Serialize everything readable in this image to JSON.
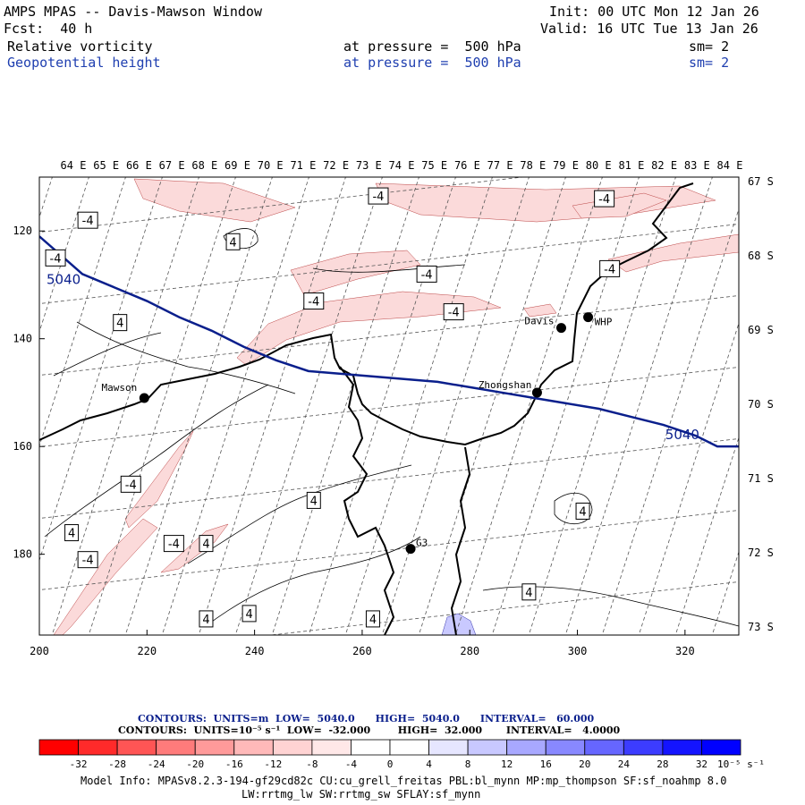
{
  "header": {
    "model": "AMPS MPAS -- Davis-Mawson Window",
    "init": "Init: 00 UTC Mon 12 Jan 26",
    "fcst": "Fcst:  40 h",
    "valid": "Valid: 16 UTC Tue 13 Jan 26",
    "field1": "Relative vorticity",
    "field1_level": "at pressure =  500 hPa",
    "field1_sm": "sm= 2",
    "field2": "Geopotential height",
    "field2_level": "at pressure =  500 hPa",
    "field2_sm": "sm= 2"
  },
  "chart_data": {
    "type": "map",
    "x_range": [
      200,
      330
    ],
    "y_range": [
      110,
      195
    ],
    "x_ticks": [
      "200",
      "220",
      "240",
      "260",
      "280",
      "300",
      "320"
    ],
    "y_ticks": [
      "120",
      "140",
      "160",
      "180"
    ],
    "top_lon_labels": [
      "64 E",
      "65 E",
      "66 E",
      "67 E",
      "68 E",
      "69 E",
      "70 E",
      "71 E",
      "72 E",
      "73 E",
      "74 E",
      "75 E",
      "76 E",
      "77 E",
      "78 E",
      "79 E",
      "80 E",
      "81 E",
      "82 E",
      "83 E",
      "84 E"
    ],
    "right_lat_labels": [
      "67 S",
      "68 S",
      "69 S",
      "70 S",
      "71 S",
      "72 S",
      "73 S"
    ],
    "stations": [
      {
        "name": "Mawson",
        "x": 219.5,
        "y": 151
      },
      {
        "name": "Davis",
        "x": 297,
        "y": 138
      },
      {
        "name": "WHP",
        "x": 302,
        "y": 136
      },
      {
        "name": "Zhongshan",
        "x": 292.5,
        "y": 150
      },
      {
        "name": "G3",
        "x": 269,
        "y": 179
      }
    ],
    "height_contour": {
      "label": "5040",
      "points": [
        [
          200,
          121
        ],
        [
          204,
          124.5
        ],
        [
          208,
          128
        ],
        [
          214,
          130.5
        ],
        [
          220,
          133
        ],
        [
          226,
          136
        ],
        [
          232,
          138.5
        ],
        [
          238,
          141.5
        ],
        [
          244,
          144
        ],
        [
          250,
          146
        ],
        [
          256,
          146.5
        ],
        [
          262,
          147
        ],
        [
          268,
          147.5
        ],
        [
          274,
          148
        ],
        [
          280,
          149
        ],
        [
          286,
          150
        ],
        [
          292,
          151
        ],
        [
          298,
          152
        ],
        [
          304,
          153
        ],
        [
          310,
          154.5
        ],
        [
          316,
          156
        ],
        [
          322,
          158
        ],
        [
          326,
          160
        ],
        [
          330,
          160
        ]
      ]
    },
    "vorticity_labels": [
      {
        "text": "-4",
        "x": 209,
        "y": 118
      },
      {
        "text": "4",
        "x": 236,
        "y": 122
      },
      {
        "text": "-4",
        "x": 203,
        "y": 125
      },
      {
        "text": "-4",
        "x": 263,
        "y": 113.5
      },
      {
        "text": "-4",
        "x": 305,
        "y": 114
      },
      {
        "text": "-4",
        "x": 272,
        "y": 128
      },
      {
        "text": "-4",
        "x": 251,
        "y": 133
      },
      {
        "text": "-4",
        "x": 277,
        "y": 135
      },
      {
        "text": "4",
        "x": 215,
        "y": 137
      },
      {
        "text": "-4",
        "x": 306,
        "y": 127
      },
      {
        "text": "-4",
        "x": 217,
        "y": 167
      },
      {
        "text": "4",
        "x": 251,
        "y": 170
      },
      {
        "text": "4",
        "x": 301,
        "y": 172
      },
      {
        "text": "4",
        "x": 206,
        "y": 176
      },
      {
        "text": "-4",
        "x": 225,
        "y": 178
      },
      {
        "text": "4",
        "x": 231,
        "y": 178
      },
      {
        "text": "-4",
        "x": 209,
        "y": 181
      },
      {
        "text": "4",
        "x": 291,
        "y": 187
      },
      {
        "text": "4",
        "x": 239,
        "y": 191
      },
      {
        "text": "4",
        "x": 231,
        "y": 192
      },
      {
        "text": "4",
        "x": 262,
        "y": 192
      }
    ]
  },
  "contours_info": {
    "line1": "CONTOURS:  UNITS=m  LOW=  5040.0      HIGH=  5040.0      INTERVAL=   60.000",
    "line2": "CONTOURS:  UNITS=10⁻⁵ s⁻¹  LOW=  -32.000        HIGH=  32.000       INTERVAL=   4.0000"
  },
  "colorbar": {
    "colors": [
      "#ff0000",
      "#ff2a2a",
      "#ff5555",
      "#ff7b7b",
      "#ff9a9a",
      "#ffb9b9",
      "#ffd3d3",
      "#ffe8e8",
      "#ffffff",
      "#ffffff",
      "#e6e6ff",
      "#c8c8ff",
      "#a8a8ff",
      "#8888ff",
      "#6666ff",
      "#3c3cff",
      "#1414ff",
      "#0000ff"
    ],
    "labels": [
      "-32",
      "-28",
      "-24",
      "-20",
      "-16",
      "-12",
      "-8",
      "-4",
      "0",
      "4",
      "8",
      "12",
      "16",
      "20",
      "24",
      "28",
      "32"
    ],
    "unit": "10⁻⁵ s⁻¹"
  },
  "footer": {
    "line1": "Model Info: MPASv8.2.3-194-gf29cd82c CU:cu_grell_freitas PBL:bl_mynn MP:mp_thompson SF:sf_noahmp 8.0",
    "line2": "LW:rrtmg_lw SW:rrtmg_sw SFLAY:sf_mynn"
  },
  "colors": {
    "height_line": "#0a1f8c",
    "neg_fill": "#fbdada",
    "pos_fill": "#c9c9ff"
  }
}
